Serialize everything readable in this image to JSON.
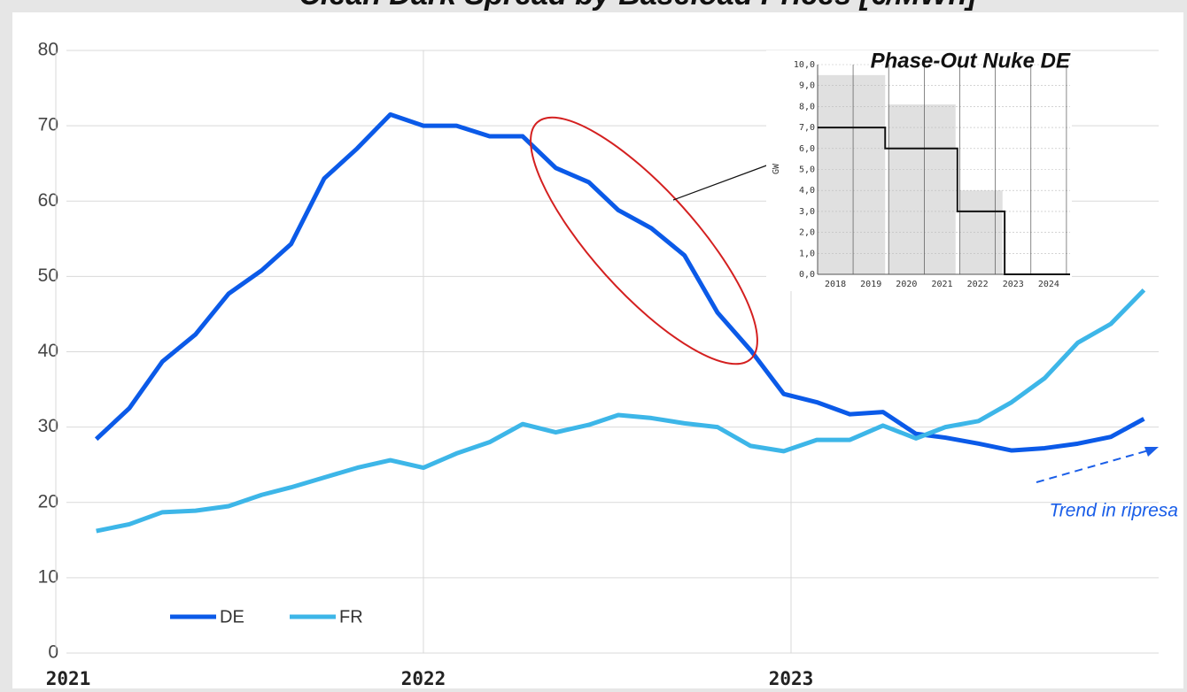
{
  "chart_data": {
    "type": "line",
    "title": "Clean Dark Spread by Baseload Prices [€/MWh]",
    "x": [
      2021.11,
      2021.2,
      2021.29,
      2021.38,
      2021.47,
      2021.56,
      2021.64,
      2021.73,
      2021.82,
      2021.91,
      2022.0,
      2022.09,
      2022.18,
      2022.27,
      2022.36,
      2022.45,
      2022.53,
      2022.62,
      2022.71,
      2022.8,
      2022.89,
      2022.98,
      2023.07,
      2023.16,
      2023.25,
      2023.34,
      2023.42,
      2023.51,
      2023.6,
      2023.69,
      2023.78,
      2023.87,
      2023.96
    ],
    "series": [
      {
        "name": "DE",
        "color": "#0b5ae8",
        "values": [
          28.4,
          32.5,
          38.7,
          42.3,
          47.7,
          50.8,
          54.3,
          63,
          67,
          71.5,
          70,
          70,
          68.6,
          68.6,
          64.4,
          62.5,
          58.8,
          56.4,
          52.8,
          45.2,
          40.2,
          34.4,
          33.3,
          31.7,
          32,
          29.1,
          28.6,
          27.8,
          26.9,
          27.2,
          27.8,
          28.7,
          31.1
        ]
      },
      {
        "name": "FR",
        "color": "#3db6e8",
        "values": [
          16.2,
          17.1,
          18.7,
          18.9,
          19.5,
          21,
          22,
          23.3,
          24.6,
          25.6,
          24.6,
          26.5,
          28,
          30.4,
          29.3,
          30.3,
          31.6,
          31.2,
          30.5,
          30,
          27.5,
          26.8,
          28.3,
          28.3,
          30.2,
          28.5,
          30,
          30.8,
          33.3,
          36.5,
          41.2,
          43.7,
          48.2
        ]
      }
    ],
    "xlim": [
      2021,
      2024
    ],
    "xticks": [
      2021,
      2022,
      2023
    ],
    "ylim": [
      0,
      80
    ],
    "yticks": [
      0,
      10,
      20,
      30,
      40,
      50,
      60,
      70,
      80
    ],
    "grid": true,
    "legend": "bottom-left",
    "annotations": [
      "Trend in ripresa"
    ],
    "inset": {
      "title": "Phase-Out Nuke DE",
      "ylabel": "GW",
      "xlim": [
        2017.5,
        2024.6
      ],
      "xticks": [
        2018,
        2019,
        2020,
        2021,
        2022,
        2023,
        2024
      ],
      "ylim": [
        0,
        10
      ],
      "yticks": [
        {
          "value": 0,
          "label": "0,0"
        },
        {
          "value": 1,
          "label": "1,0"
        },
        {
          "value": 2,
          "label": "2,0"
        },
        {
          "value": 3,
          "label": "3,0"
        },
        {
          "value": 4,
          "label": "4,0"
        },
        {
          "value": 5,
          "label": "5,0"
        },
        {
          "value": 6,
          "label": "6,0"
        },
        {
          "value": 7,
          "label": "7,0"
        },
        {
          "value": 8,
          "label": "8,0"
        },
        {
          "value": 9,
          "label": "9,0"
        },
        {
          "value": 10,
          "label": "10,0"
        }
      ],
      "bars": [
        {
          "x0": 2017.5,
          "x1": 2019.4,
          "value": 9.5
        },
        {
          "x0": 2019.48,
          "x1": 2021.38,
          "value": 8.1
        },
        {
          "x0": 2021.5,
          "x1": 2022.7,
          "value": 4.0
        }
      ],
      "steps": [
        {
          "x0": 2017.5,
          "x1": 2019.4,
          "value": 7
        },
        {
          "x0": 2019.4,
          "x1": 2021.43,
          "value": 6
        },
        {
          "x0": 2021.43,
          "x1": 2022.76,
          "value": 3
        },
        {
          "x0": 2022.76,
          "x1": 2024.6,
          "value": 0
        }
      ]
    }
  }
}
